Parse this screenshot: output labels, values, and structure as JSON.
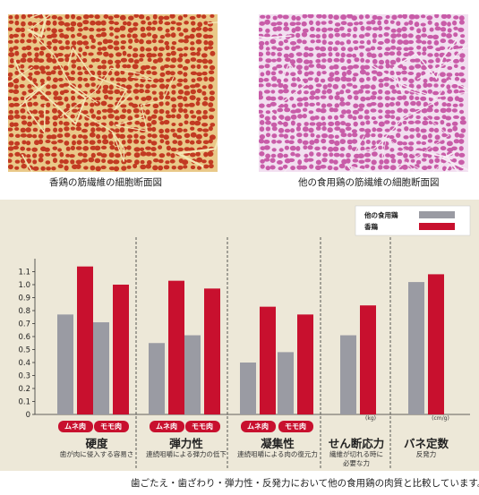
{
  "photos": {
    "left_caption": "香鶏の筋繊維の細胞断面図",
    "right_caption": "他の食用鶏の筋繊維の細胞断面図"
  },
  "colors": {
    "other": "#9a9ba3",
    "koukei": "#c8102e",
    "panel": "#ede8d8"
  },
  "chart_data": {
    "type": "bar",
    "title": "",
    "xlabel": "",
    "ylabel": "",
    "ylim": [
      0,
      1.2
    ],
    "yticks": [
      "0",
      "0.1",
      "0.2",
      "0.3",
      "0.4",
      "0.5",
      "0.6",
      "0.7",
      "0.8",
      "0.9",
      "1.0",
      "1.1"
    ],
    "legend": [
      {
        "name": "他の食用鶏",
        "color": "#9a9ba3"
      },
      {
        "name": "香鶏",
        "color": "#c8102e"
      }
    ],
    "legend_position": "top-right",
    "groups": [
      {
        "title": "硬度",
        "subtitle": [
          "歯が肉に侵入する容易さ"
        ],
        "unit": "",
        "parts": [
          {
            "label": "ムネ肉",
            "other": 0.77,
            "koukei": 1.14
          },
          {
            "label": "モモ肉",
            "other": 0.71,
            "koukei": 1.0
          }
        ]
      },
      {
        "title": "弾力性",
        "subtitle": [
          "連続咀嚼による弾力の低下"
        ],
        "unit": "",
        "parts": [
          {
            "label": "ムネ肉",
            "other": 0.55,
            "koukei": 1.03
          },
          {
            "label": "モモ肉",
            "other": 0.61,
            "koukei": 0.97
          }
        ]
      },
      {
        "title": "凝集性",
        "subtitle": [
          "連続咀嚼による肉の復元力"
        ],
        "unit": "",
        "parts": [
          {
            "label": "ムネ肉",
            "other": 0.4,
            "koukei": 0.83
          },
          {
            "label": "モモ肉",
            "other": 0.48,
            "koukei": 0.77
          }
        ]
      },
      {
        "title": "せん断応力",
        "subtitle": [
          "繊維が切れる時に",
          "必要な力"
        ],
        "unit": "(kg)",
        "parts": [
          {
            "label": "",
            "other": 0.61,
            "koukei": 0.84
          }
        ]
      },
      {
        "title": "バネ定数",
        "subtitle": [
          "反発力"
        ],
        "unit": "(cm/g)",
        "parts": [
          {
            "label": "",
            "other": 1.02,
            "koukei": 1.08
          }
        ]
      }
    ]
  },
  "footnote": "歯ごたえ・歯ざわり・弾力性・反発力において他の食用鶏の肉質と比較しています。"
}
